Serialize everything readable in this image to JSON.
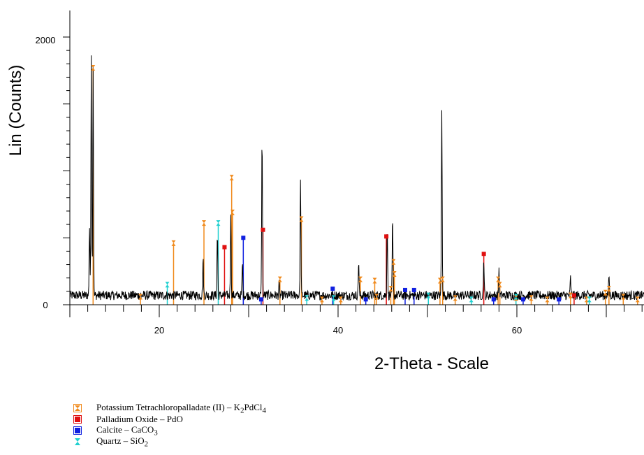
{
  "chart_data": {
    "type": "line",
    "xlabel": "2-Theta - Scale",
    "ylabel": "Lin (Counts)",
    "xlim": [
      10,
      75
    ],
    "ylim": [
      0,
      2200
    ],
    "x_ticks": [
      "20",
      "40",
      "60"
    ],
    "y_ticks": [
      "0",
      "2000"
    ],
    "line_color": "#000000",
    "baseline_counts": 70,
    "peaks": [
      {
        "x": 12.2,
        "y": 580
      },
      {
        "x": 12.4,
        "y": 1880
      },
      {
        "x": 12.6,
        "y": 1800
      },
      {
        "x": 24.9,
        "y": 340
      },
      {
        "x": 26.5,
        "y": 530
      },
      {
        "x": 28.0,
        "y": 700
      },
      {
        "x": 29.3,
        "y": 310
      },
      {
        "x": 31.5,
        "y": 1260
      },
      {
        "x": 33.4,
        "y": 150
      },
      {
        "x": 35.8,
        "y": 910
      },
      {
        "x": 42.3,
        "y": 330
      },
      {
        "x": 45.5,
        "y": 580
      },
      {
        "x": 46.1,
        "y": 640
      },
      {
        "x": 51.6,
        "y": 1480
      },
      {
        "x": 56.3,
        "y": 330
      },
      {
        "x": 58.0,
        "y": 270
      },
      {
        "x": 66.0,
        "y": 200
      },
      {
        "x": 70.3,
        "y": 230
      }
    ],
    "series": [
      {
        "name": "Potassium Tetrachloropalladate (II) – K2PdCl4",
        "color": "#f08a1c",
        "marker": "hourglass",
        "sticks": [
          {
            "x": 12.6,
            "y": 1770
          },
          {
            "x": 17.9,
            "y": 60
          },
          {
            "x": 21.6,
            "y": 460
          },
          {
            "x": 25.0,
            "y": 610
          },
          {
            "x": 28.1,
            "y": 950
          },
          {
            "x": 28.2,
            "y": 690
          },
          {
            "x": 33.5,
            "y": 190
          },
          {
            "x": 35.9,
            "y": 640
          },
          {
            "x": 38.2,
            "y": 40
          },
          {
            "x": 40.3,
            "y": 40
          },
          {
            "x": 42.5,
            "y": 190
          },
          {
            "x": 44.1,
            "y": 180
          },
          {
            "x": 44.3,
            "y": 60
          },
          {
            "x": 45.9,
            "y": 120
          },
          {
            "x": 46.2,
            "y": 320
          },
          {
            "x": 46.3,
            "y": 230
          },
          {
            "x": 51.4,
            "y": 180
          },
          {
            "x": 51.7,
            "y": 190
          },
          {
            "x": 53.1,
            "y": 50
          },
          {
            "x": 57.9,
            "y": 190
          },
          {
            "x": 58.1,
            "y": 150
          },
          {
            "x": 59.9,
            "y": 50
          },
          {
            "x": 61.6,
            "y": 50
          },
          {
            "x": 63.4,
            "y": 40
          },
          {
            "x": 66.0,
            "y": 70
          },
          {
            "x": 67.8,
            "y": 40
          },
          {
            "x": 69.9,
            "y": 90
          },
          {
            "x": 70.3,
            "y": 120
          },
          {
            "x": 71.9,
            "y": 60
          },
          {
            "x": 73.5,
            "y": 40
          }
        ]
      },
      {
        "name": "Palladium Oxide – PdO",
        "color": "#e01010",
        "marker": "square",
        "sticks": [
          {
            "x": 27.3,
            "y": 430
          },
          {
            "x": 31.6,
            "y": 560
          },
          {
            "x": 45.4,
            "y": 510
          },
          {
            "x": 56.3,
            "y": 380
          },
          {
            "x": 66.4,
            "y": 70
          }
        ]
      },
      {
        "name": "Calcite – CaCO3",
        "color": "#1020e0",
        "marker": "square",
        "sticks": [
          {
            "x": 29.4,
            "y": 500
          },
          {
            "x": 31.4,
            "y": 40
          },
          {
            "x": 39.4,
            "y": 120
          },
          {
            "x": 43.1,
            "y": 40
          },
          {
            "x": 47.5,
            "y": 110
          },
          {
            "x": 48.5,
            "y": 110
          },
          {
            "x": 57.4,
            "y": 40
          },
          {
            "x": 60.7,
            "y": 40
          },
          {
            "x": 64.7,
            "y": 40
          }
        ]
      },
      {
        "name": "Quartz – SiO2",
        "color": "#20d0d0",
        "marker": "hourglass",
        "sticks": [
          {
            "x": 20.9,
            "y": 150
          },
          {
            "x": 26.6,
            "y": 610
          },
          {
            "x": 36.5,
            "y": 50
          },
          {
            "x": 39.5,
            "y": 50
          },
          {
            "x": 50.1,
            "y": 70
          },
          {
            "x": 54.9,
            "y": 40
          },
          {
            "x": 59.9,
            "y": 60
          },
          {
            "x": 68.1,
            "y": 40
          }
        ]
      }
    ]
  },
  "legend": [
    {
      "name_prefix": "Potassium Tetrachloropalladate (II) – K",
      "sub1": "2",
      "mid": "PdCl",
      "sub2": "4",
      "color": "#f08a1c",
      "marker": "hourglass"
    },
    {
      "name_prefix": "Palladium Oxide – PdO",
      "sub1": "",
      "mid": "",
      "sub2": "",
      "color": "#e01010",
      "marker": "square"
    },
    {
      "name_prefix": "Calcite – CaCO",
      "sub1": "3",
      "mid": "",
      "sub2": "",
      "color": "#1020e0",
      "marker": "square"
    },
    {
      "name_prefix": "Quartz – SiO",
      "sub1": "2",
      "mid": "",
      "sub2": "",
      "color": "#20d0d0",
      "marker": "hourglass"
    }
  ]
}
